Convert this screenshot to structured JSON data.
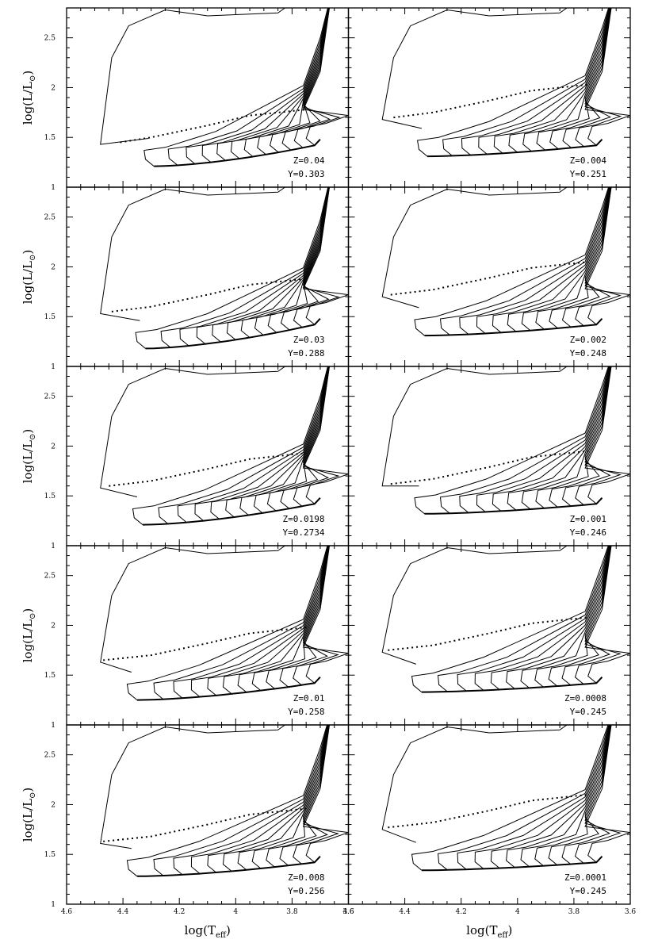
{
  "chart_data": {
    "type": "line",
    "title": "",
    "xlabel": "log(Teff)",
    "ylabel": "log(L/Lsun)",
    "xlabel_main": "log(T",
    "xlabel_sub": "eff",
    "xlabel_end": ")",
    "ylabel_main": "log(L/L",
    "ylabel_sub": "⊙",
    "ylabel_end": ")",
    "xlim": [
      4.6,
      3.6
    ],
    "ylim": [
      1.0,
      2.8
    ],
    "xtick_values": [
      4.6,
      4.4,
      4.2,
      4.0,
      3.8,
      3.6
    ],
    "xtick_labels": [
      "4.6",
      "4.4",
      "4.2",
      "4",
      "3.8",
      "3.6"
    ],
    "ytick_values": [
      1.0,
      1.5,
      2.0,
      2.5
    ],
    "ytick_labels": [
      "1",
      "1.5",
      "2",
      "2.5"
    ],
    "layout": "5 rows x 2 columns, shared axes",
    "panels": [
      {
        "Z": "Z=0.04",
        "Y": "Y=0.303",
        "zams_tip": [
          4.29,
          1.21
        ],
        "hook_y": 1.45,
        "n_tracks": 12
      },
      {
        "Z": "Z=0.004",
        "Y": "Y=0.251",
        "zams_tip": [
          4.32,
          1.31
        ],
        "hook_y": 1.7,
        "n_tracks": 12
      },
      {
        "Z": "Z=0.03",
        "Y": "Y=0.288",
        "zams_tip": [
          4.32,
          1.18
        ],
        "hook_y": 1.55,
        "n_tracks": 12
      },
      {
        "Z": "Z=0.002",
        "Y": "Y=0.248",
        "zams_tip": [
          4.33,
          1.31
        ],
        "hook_y": 1.72,
        "n_tracks": 12
      },
      {
        "Z": "Z=0.0198",
        "Y": "Y=0.2734",
        "zams_tip": [
          4.33,
          1.21
        ],
        "hook_y": 1.6,
        "n_tracks": 12
      },
      {
        "Z": "Z=0.001",
        "Y": "Y=0.246",
        "zams_tip": [
          4.33,
          1.32
        ],
        "hook_y": 1.62,
        "n_tracks": 12
      },
      {
        "Z": "Z=0.01",
        "Y": "Y=0.258",
        "zams_tip": [
          4.35,
          1.25
        ],
        "hook_y": 1.65,
        "n_tracks": 12
      },
      {
        "Z": "Z=0.0008",
        "Y": "Y=0.245",
        "zams_tip": [
          4.34,
          1.33
        ],
        "hook_y": 1.75,
        "n_tracks": 12
      },
      {
        "Z": "Z=0.008",
        "Y": "Y=0.256",
        "zams_tip": [
          4.35,
          1.28
        ],
        "hook_y": 1.63,
        "n_tracks": 12
      },
      {
        "Z": "Z=0.0001",
        "Y": "Y=0.245",
        "zams_tip": [
          4.34,
          1.34
        ],
        "hook_y": 1.77,
        "n_tracks": 12
      }
    ]
  }
}
